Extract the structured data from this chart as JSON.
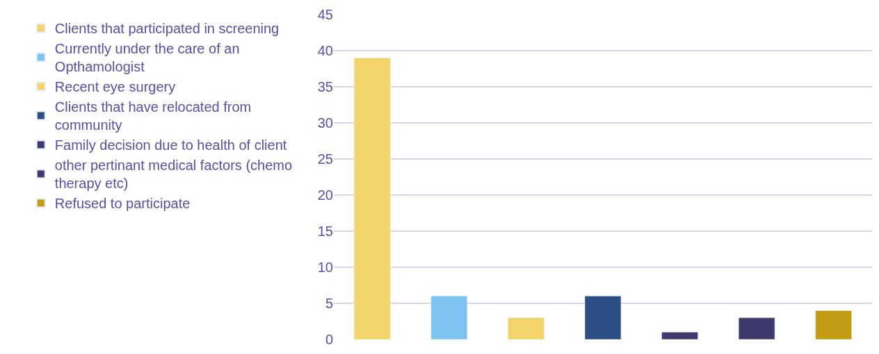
{
  "chart_data": {
    "type": "bar",
    "categories": [
      null,
      null,
      null,
      null,
      null,
      null,
      null
    ],
    "series": [
      {
        "name": "Clients that participated in screening",
        "color": "#f2d46b",
        "values": [
          39,
          null,
          null,
          null,
          null,
          null,
          null
        ]
      },
      {
        "name": "Currently under the care of an Opthamologist",
        "color": "#7ec4f0",
        "values": [
          null,
          6,
          null,
          null,
          null,
          null,
          null
        ]
      },
      {
        "name": "Recent eye surgery",
        "color": "#f2d46b",
        "values": [
          null,
          null,
          3,
          null,
          null,
          null,
          null
        ]
      },
      {
        "name": "Clients that have relocated from community",
        "color": "#2c4e85",
        "values": [
          null,
          null,
          null,
          6,
          null,
          null,
          null
        ]
      },
      {
        "name": "Family decision due to health of client",
        "color": "#3e3a6e",
        "values": [
          null,
          null,
          null,
          null,
          1,
          null,
          null
        ]
      },
      {
        "name": "other pertinant medical factors (chemo therapy etc)",
        "color": "#3e3a6e",
        "values": [
          null,
          null,
          null,
          null,
          null,
          3,
          null
        ]
      },
      {
        "name": "Refused to participate",
        "color": "#c29c12",
        "values": [
          null,
          null,
          null,
          null,
          null,
          null,
          4
        ]
      }
    ],
    "ylim": [
      0,
      45
    ],
    "yticks": [
      0,
      5,
      10,
      15,
      20,
      25,
      30,
      35,
      40,
      45
    ],
    "grid": "y",
    "legend": "left"
  }
}
